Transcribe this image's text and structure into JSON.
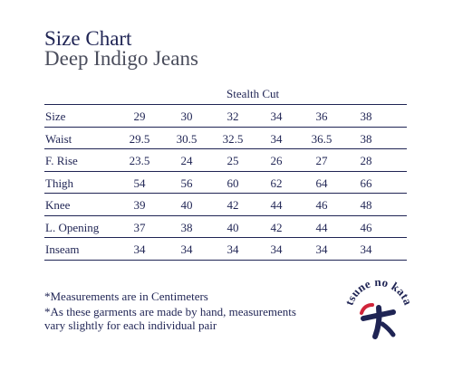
{
  "header": {
    "title": "Size Chart",
    "subtitle": "Deep Indigo Jeans"
  },
  "table": {
    "cut_label": "Stealth Cut",
    "rows": [
      {
        "label": "Size",
        "values": [
          "29",
          "30",
          "32",
          "34",
          "36",
          "38"
        ]
      },
      {
        "label": "Waist",
        "values": [
          "29.5",
          "30.5",
          "32.5",
          "34",
          "36.5",
          "38"
        ]
      },
      {
        "label": "F. Rise",
        "values": [
          "23.5",
          "24",
          "25",
          "26",
          "27",
          "28"
        ]
      },
      {
        "label": "Thigh",
        "values": [
          "54",
          "56",
          "60",
          "62",
          "64",
          "66"
        ]
      },
      {
        "label": "Knee",
        "values": [
          "39",
          "40",
          "42",
          "44",
          "46",
          "48"
        ]
      },
      {
        "label": "L. Opening",
        "values": [
          "37",
          "38",
          "40",
          "42",
          "44",
          "46"
        ]
      },
      {
        "label": "Inseam",
        "values": [
          "34",
          "34",
          "34",
          "34",
          "34",
          "34"
        ]
      }
    ]
  },
  "notes": {
    "note1": "*Measurements are in Centimeters",
    "note2": "*As these garments are made by hand, measurements vary slightly for each individual pair"
  },
  "logo": {
    "text": "tsune no kata",
    "brand_color": "#1f2454",
    "accent_color": "#d0243a"
  }
}
